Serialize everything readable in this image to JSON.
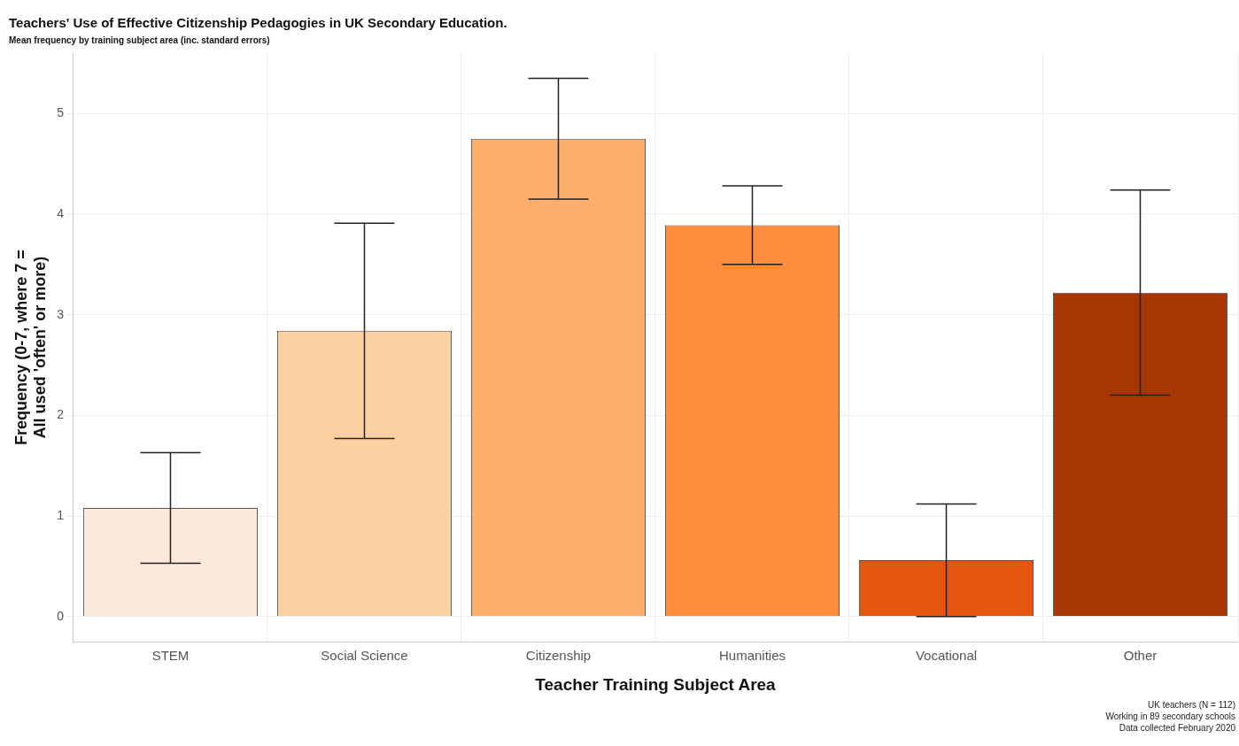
{
  "chart_data": {
    "type": "bar",
    "title": "Teachers' Use of Effective Citizenship Pedagogies in UK Secondary Education.",
    "subtitle": "Mean frequency by training subject area (inc. standard errors)",
    "xlabel": "Teacher Training Subject Area",
    "ylabel": "Frequency (0-7, where 7 =\nAll used 'often' or more)",
    "categories": [
      "STEM",
      "Social Science",
      "Citizenship",
      "Humanities",
      "Vocational",
      "Other"
    ],
    "values": [
      1.08,
      2.84,
      4.75,
      3.89,
      0.56,
      3.22
    ],
    "colors": [
      "#fde9dc",
      "#fdd0a2",
      "#fdae6b",
      "#fd8d3c",
      "#e6550d",
      "#a63603"
    ],
    "errors": [
      0.55,
      1.07,
      0.6,
      0.39,
      0.56,
      1.02
    ],
    "ylim": [
      -0.25,
      5.6
    ],
    "yticks": [
      0,
      1,
      2,
      3,
      4,
      5
    ],
    "grid": true,
    "legend": false,
    "annotations": [
      "UK teachers (N = 112)",
      "Working in 89 secondary schools",
      "Data collected February 2020"
    ]
  }
}
